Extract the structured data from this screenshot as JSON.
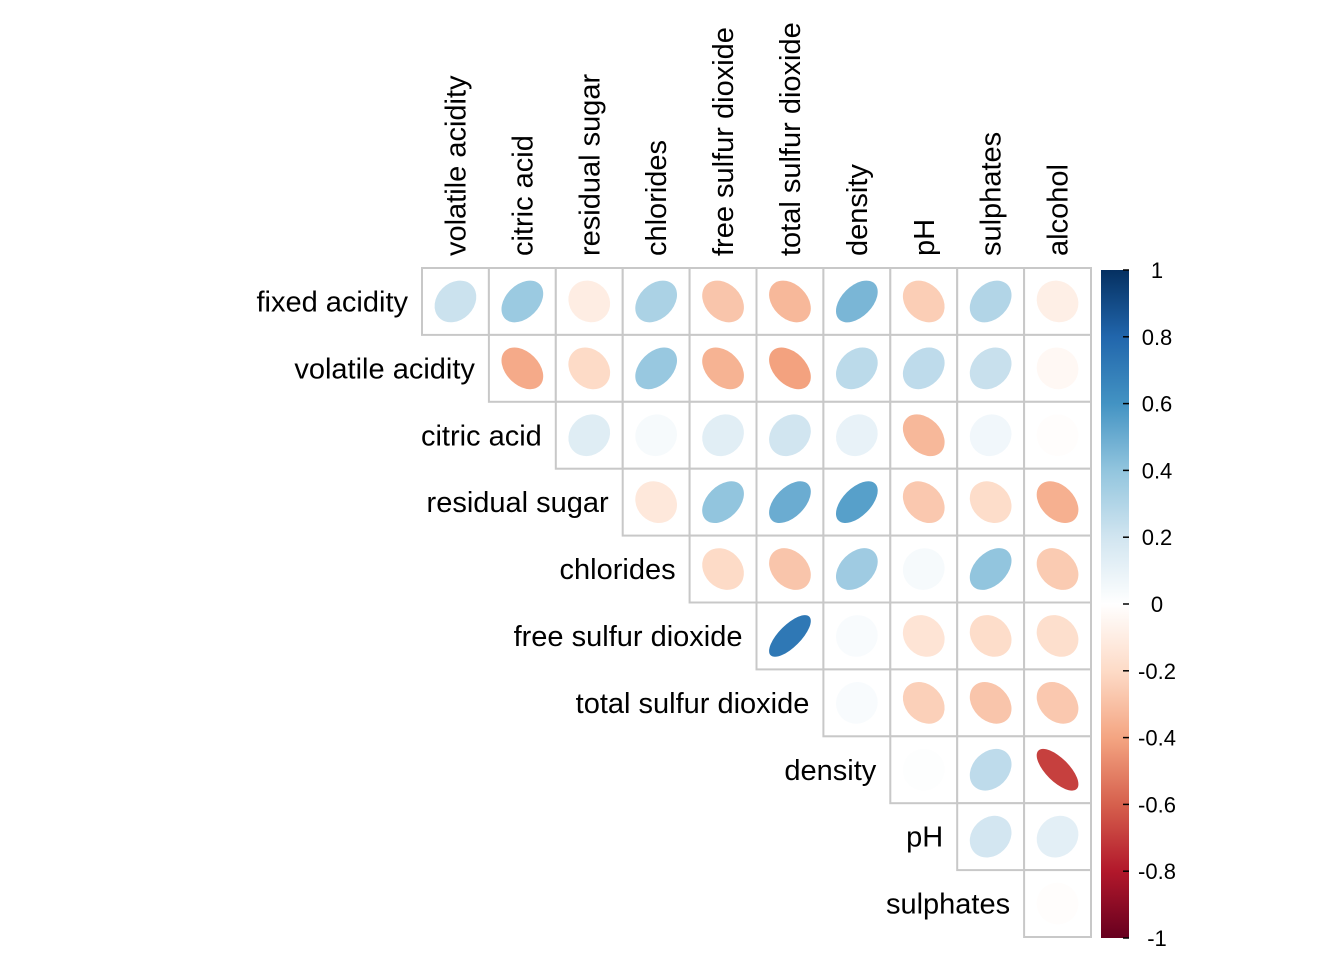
{
  "chart_data": {
    "type": "heatmap",
    "style": "corrplot-ellipse-upper-triangle",
    "row_labels": [
      "fixed acidity",
      "volatile acidity",
      "citric acid",
      "residual sugar",
      "chlorides",
      "free sulfur dioxide",
      "total sulfur dioxide",
      "density",
      "pH",
      "sulphates"
    ],
    "col_labels": [
      "volatile acidity",
      "citric acid",
      "residual sugar",
      "chlorides",
      "free sulfur dioxide",
      "total sulfur dioxide",
      "density",
      "pH",
      "sulphates",
      "alcohol"
    ],
    "cells": [
      {
        "row": 0,
        "col": 0,
        "value": 0.22
      },
      {
        "row": 0,
        "col": 1,
        "value": 0.37
      },
      {
        "row": 0,
        "col": 2,
        "value": -0.1
      },
      {
        "row": 0,
        "col": 3,
        "value": 0.32
      },
      {
        "row": 0,
        "col": 4,
        "value": -0.28
      },
      {
        "row": 0,
        "col": 5,
        "value": -0.33
      },
      {
        "row": 0,
        "col": 6,
        "value": 0.46
      },
      {
        "row": 0,
        "col": 7,
        "value": -0.25
      },
      {
        "row": 0,
        "col": 8,
        "value": 0.3
      },
      {
        "row": 0,
        "col": 9,
        "value": -0.09
      },
      {
        "row": 1,
        "col": 1,
        "value": -0.38
      },
      {
        "row": 1,
        "col": 2,
        "value": -0.2
      },
      {
        "row": 1,
        "col": 3,
        "value": 0.38
      },
      {
        "row": 1,
        "col": 4,
        "value": -0.35
      },
      {
        "row": 1,
        "col": 5,
        "value": -0.41
      },
      {
        "row": 1,
        "col": 6,
        "value": 0.27
      },
      {
        "row": 1,
        "col": 7,
        "value": 0.26
      },
      {
        "row": 1,
        "col": 8,
        "value": 0.23
      },
      {
        "row": 1,
        "col": 9,
        "value": -0.04
      },
      {
        "row": 2,
        "col": 2,
        "value": 0.14
      },
      {
        "row": 2,
        "col": 3,
        "value": 0.04
      },
      {
        "row": 2,
        "col": 4,
        "value": 0.13
      },
      {
        "row": 2,
        "col": 5,
        "value": 0.2
      },
      {
        "row": 2,
        "col": 6,
        "value": 0.1
      },
      {
        "row": 2,
        "col": 7,
        "value": -0.33
      },
      {
        "row": 2,
        "col": 8,
        "value": 0.06
      },
      {
        "row": 2,
        "col": 9,
        "value": -0.01
      },
      {
        "row": 3,
        "col": 3,
        "value": -0.13
      },
      {
        "row": 3,
        "col": 4,
        "value": 0.4
      },
      {
        "row": 3,
        "col": 5,
        "value": 0.5
      },
      {
        "row": 3,
        "col": 6,
        "value": 0.55
      },
      {
        "row": 3,
        "col": 7,
        "value": -0.27
      },
      {
        "row": 3,
        "col": 8,
        "value": -0.19
      },
      {
        "row": 3,
        "col": 9,
        "value": -0.36
      },
      {
        "row": 4,
        "col": 4,
        "value": -0.2
      },
      {
        "row": 4,
        "col": 5,
        "value": -0.28
      },
      {
        "row": 4,
        "col": 6,
        "value": 0.36
      },
      {
        "row": 4,
        "col": 7,
        "value": 0.04
      },
      {
        "row": 4,
        "col": 8,
        "value": 0.4
      },
      {
        "row": 4,
        "col": 9,
        "value": -0.26
      },
      {
        "row": 5,
        "col": 5,
        "value": 0.72
      },
      {
        "row": 5,
        "col": 6,
        "value": 0.03
      },
      {
        "row": 5,
        "col": 7,
        "value": -0.15
      },
      {
        "row": 5,
        "col": 8,
        "value": -0.19
      },
      {
        "row": 5,
        "col": 9,
        "value": -0.18
      },
      {
        "row": 6,
        "col": 6,
        "value": 0.03
      },
      {
        "row": 6,
        "col": 7,
        "value": -0.24
      },
      {
        "row": 6,
        "col": 8,
        "value": -0.28
      },
      {
        "row": 6,
        "col": 9,
        "value": -0.27
      },
      {
        "row": 7,
        "col": 7,
        "value": 0.01
      },
      {
        "row": 7,
        "col": 8,
        "value": 0.26
      },
      {
        "row": 7,
        "col": 9,
        "value": -0.69
      },
      {
        "row": 8,
        "col": 8,
        "value": 0.19
      },
      {
        "row": 8,
        "col": 9,
        "value": 0.12
      },
      {
        "row": 9,
        "col": 9,
        "value": -0.01
      }
    ],
    "colorbar": {
      "range": [
        -1,
        1
      ],
      "ticks": [
        1,
        0.8,
        0.6,
        0.4,
        0.2,
        0,
        -0.2,
        -0.4,
        -0.6,
        -0.8,
        -1
      ],
      "tick_labels": [
        "1",
        "0.8",
        "0.6",
        "0.4",
        "0.2",
        "0",
        "-0.2",
        "-0.4",
        "-0.6",
        "-0.8",
        "-1"
      ],
      "position": "right"
    },
    "palette": [
      "#67001F",
      "#B2182B",
      "#D6604D",
      "#F4A582",
      "#FDDBC7",
      "#FFFFFF",
      "#D1E5F0",
      "#92C5DE",
      "#4393C3",
      "#2166AC",
      "#053061"
    ],
    "grid_color": "#C8C8C8",
    "legend": "right"
  }
}
